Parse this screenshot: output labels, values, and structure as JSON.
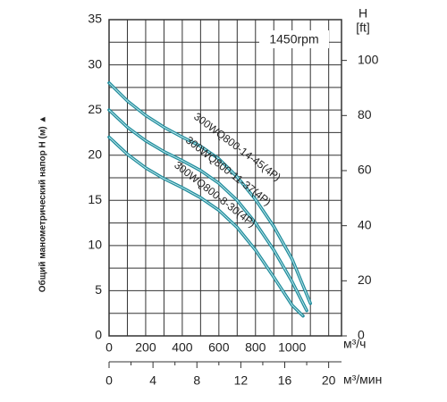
{
  "chart_data": {
    "type": "line",
    "annotation": "1450rpm",
    "y_label": "Общий манометрический напор H (м) ▲",
    "x_unit": "м³/ч",
    "x2_unit": "м³/мин",
    "y2_label": "H",
    "y2_unit": "[ft]",
    "xlim": [
      0,
      1270
    ],
    "xticks": [
      0,
      200,
      400,
      600,
      800,
      1000
    ],
    "x_minor_grid": [
      100,
      300,
      500,
      700,
      900,
      1100,
      1200
    ],
    "ylim": [
      0,
      35
    ],
    "yticks": [
      0,
      5,
      10,
      15,
      20,
      25,
      30,
      35
    ],
    "y_minor_grid": [
      2.5,
      7.5,
      12.5,
      17.5,
      22.5,
      27.5,
      32.5
    ],
    "y2lim": [
      0,
      114.8
    ],
    "y2ticks": [
      0,
      20,
      40,
      60,
      80,
      100
    ],
    "x2lim": [
      0,
      21.17
    ],
    "x2ticks": [
      0,
      4,
      8,
      12,
      16,
      20
    ],
    "x2_minor_ticks": [
      2,
      6,
      10,
      14,
      18
    ],
    "grid": true,
    "series": [
      {
        "name": "300WQ800-14-45(4P)",
        "color": "#1f8c9c",
        "x": [
          0,
          100,
          200,
          300,
          400,
          500,
          600,
          700,
          800,
          900,
          1000,
          1100
        ],
        "values": [
          28,
          26,
          24.4,
          23.1,
          22,
          21,
          19.6,
          17.6,
          15.1,
          12.1,
          8.5,
          3.6
        ]
      },
      {
        "name": "300WQ800-11-37(4P)",
        "color": "#1f8c9c",
        "x": [
          0,
          100,
          200,
          300,
          400,
          500,
          600,
          700,
          800,
          900,
          1000,
          1080
        ],
        "values": [
          25,
          23.1,
          21.6,
          20.4,
          19.4,
          18.3,
          16.9,
          15,
          12.5,
          9.5,
          6,
          2.8
        ]
      },
      {
        "name": "300WQ800-8-30(4P)",
        "color": "#1f8c9c",
        "x": [
          0,
          100,
          200,
          300,
          400,
          500,
          600,
          700,
          800,
          900,
          1000,
          1060
        ],
        "values": [
          22,
          20.1,
          18.6,
          17.4,
          16.4,
          15.3,
          13.9,
          12,
          9.5,
          6.5,
          3.4,
          2.2
        ]
      }
    ]
  }
}
